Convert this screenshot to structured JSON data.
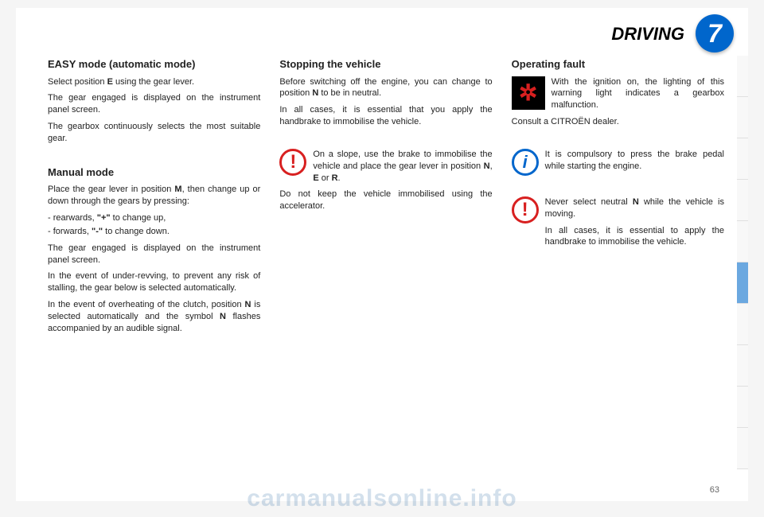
{
  "header": {
    "title": "DRIVING",
    "chapter_number": "7"
  },
  "col1": {
    "easy": {
      "heading": "EASY mode (automatic mode)",
      "p1_a": "Select position ",
      "p1_b": "E",
      "p1_c": " using the gear lever.",
      "p2": "The gear engaged is displayed on the instrument panel screen.",
      "p3": "The gearbox continuously selects the most suitable gear."
    },
    "manual": {
      "heading": "Manual mode",
      "p1_a": "Place the gear lever in position ",
      "p1_b": "M",
      "p1_c": ", then change up or down through the gears by pressing:",
      "li1_a": "rearwards, ",
      "li1_b": "\"+\"",
      "li1_c": " to change up,",
      "li2_a": "forwards, ",
      "li2_b": "\"-\"",
      "li2_c": " to change down.",
      "p2": "The gear engaged is displayed on the instrument panel screen.",
      "p3": "In the event of under-revving, to prevent any risk of stalling, the gear below is selected automatically.",
      "p4_a": "In the event of overheating of the clutch, position ",
      "p4_b": "N",
      "p4_c": " is selected automatically and the symbol ",
      "p4_d": "N",
      "p4_e": " flashes accompanied by an audible signal."
    }
  },
  "col2": {
    "stop": {
      "heading": "Stopping the vehicle",
      "p1_a": "Before switching off the engine, you can change to position ",
      "p1_b": "N",
      "p1_c": " to be in neutral.",
      "p2": "In all cases, it is essential that you apply the handbrake to immobilise the vehicle."
    },
    "slope": {
      "t_a": "On a slope, use the brake to immobilise the vehicle and place the gear lever in position ",
      "t_b": "N",
      "t_c": ", ",
      "t_d": "E",
      "t_e": " or ",
      "t_f": "R",
      "t_g": ".",
      "after": "Do not keep the vehicle immobilised using the accelerator."
    }
  },
  "col3": {
    "fault": {
      "heading": "Operating fault",
      "gear_txt": "With the ignition on, the lighting of this warning light indicates a gearbox malfunction.",
      "consult": "Consult a CITROËN dealer."
    },
    "info": {
      "txt": "It is compulsory to press the brake pedal while starting the engine."
    },
    "warn2": {
      "p1_a": "Never select neutral ",
      "p1_b": "N",
      "p1_c": " while the vehicle is moving.",
      "p2": "In all cases, it is essential to apply the handbrake to immobilise the vehicle."
    }
  },
  "pagenum": "63",
  "watermark": "carmanualsonline.info",
  "icons": {
    "warn": "!",
    "info": "i",
    "gear": "✲"
  },
  "style": {
    "accent_blue": "#0066cc",
    "warn_red": "#d82020",
    "bg": "#ffffff"
  }
}
